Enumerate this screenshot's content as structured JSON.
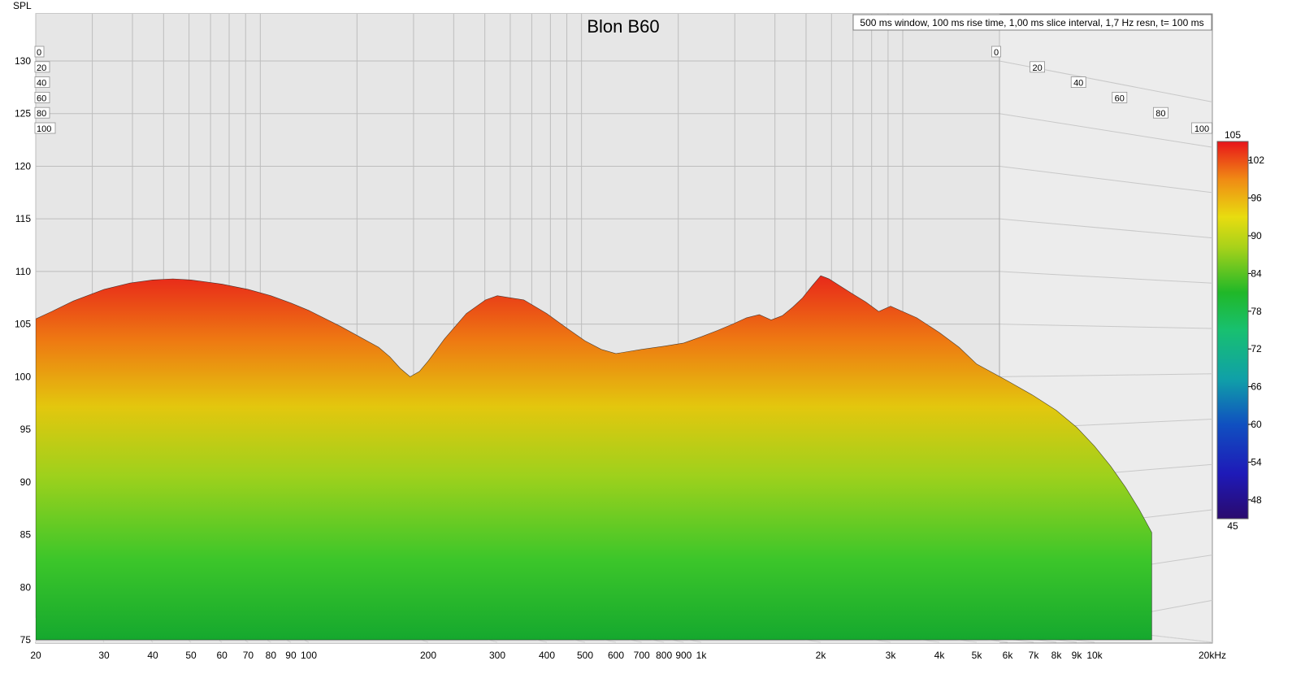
{
  "chart_data": {
    "type": "area",
    "title": "Blon B60",
    "info": "500 ms window, 100 ms rise time, 1,00 ms slice interval, 1,7 Hz resn, t= 100 ms",
    "ylabel": "SPL",
    "xscale": "log",
    "xlim": [
      20,
      20000
    ],
    "ylim": [
      75,
      135
    ],
    "x_ticks": [
      {
        "v": 20,
        "label": "20"
      },
      {
        "v": 30,
        "label": "30"
      },
      {
        "v": 40,
        "label": "40"
      },
      {
        "v": 50,
        "label": "50"
      },
      {
        "v": 60,
        "label": "60"
      },
      {
        "v": 70,
        "label": "70"
      },
      {
        "v": 80,
        "label": "80"
      },
      {
        "v": 90,
        "label": "90"
      },
      {
        "v": 100,
        "label": "100"
      },
      {
        "v": 200,
        "label": "200"
      },
      {
        "v": 300,
        "label": "300"
      },
      {
        "v": 400,
        "label": "400"
      },
      {
        "v": 500,
        "label": "500"
      },
      {
        "v": 600,
        "label": "600"
      },
      {
        "v": 700,
        "label": "700"
      },
      {
        "v": 800,
        "label": "800"
      },
      {
        "v": 900,
        "label": "900"
      },
      {
        "v": 1000,
        "label": "1k"
      },
      {
        "v": 2000,
        "label": "2k"
      },
      {
        "v": 3000,
        "label": "3k"
      },
      {
        "v": 4000,
        "label": "4k"
      },
      {
        "v": 5000,
        "label": "5k"
      },
      {
        "v": 6000,
        "label": "6k"
      },
      {
        "v": 7000,
        "label": "7k"
      },
      {
        "v": 8000,
        "label": "8k"
      },
      {
        "v": 9000,
        "label": "9k"
      },
      {
        "v": 10000,
        "label": "10k"
      },
      {
        "v": 20000,
        "label": "20kHz"
      }
    ],
    "y_ticks": [
      75,
      80,
      85,
      90,
      95,
      100,
      105,
      110,
      115,
      120,
      125,
      130
    ],
    "time_axis_ms": [
      0,
      20,
      40,
      60,
      80,
      100
    ],
    "time_axis_labels": [
      "0",
      "20",
      "40",
      "60",
      "80",
      "100"
    ],
    "colorbar": {
      "min": 45,
      "max": 105,
      "ticks": [
        48,
        54,
        60,
        66,
        72,
        78,
        84,
        90,
        96,
        102
      ],
      "min_label": "45",
      "max_label": "105"
    },
    "series": [
      {
        "x": [
          20,
          22,
          25,
          30,
          35,
          40,
          45,
          50,
          60,
          70,
          80,
          90,
          100,
          120,
          150,
          160,
          170,
          180,
          190,
          200,
          220,
          250,
          280,
          300,
          350,
          400,
          450,
          500,
          550,
          600,
          700,
          800,
          900,
          1000,
          1100,
          1200,
          1300,
          1400,
          1500,
          1600,
          1700,
          1800,
          1900,
          2000,
          2100,
          2200,
          2400,
          2600,
          2800,
          3000,
          3500,
          4000,
          4500,
          5000,
          6000,
          7000,
          8000,
          9000,
          10000,
          11000,
          12000,
          13000,
          14000
        ],
        "y": [
          105.5,
          106.2,
          107.2,
          108.3,
          108.9,
          109.2,
          109.3,
          109.2,
          108.8,
          108.3,
          107.7,
          107.0,
          106.3,
          104.8,
          102.8,
          101.9,
          100.8,
          100.0,
          100.5,
          101.5,
          103.6,
          106.0,
          107.3,
          107.7,
          107.3,
          106.0,
          104.6,
          103.4,
          102.6,
          102.2,
          102.6,
          102.9,
          103.2,
          103.8,
          104.4,
          105.0,
          105.6,
          105.9,
          105.4,
          105.8,
          106.6,
          107.5,
          108.6,
          109.6,
          109.3,
          108.8,
          107.9,
          107.1,
          106.2,
          106.7,
          105.6,
          104.2,
          102.8,
          101.2,
          99.6,
          98.2,
          96.8,
          95.2,
          93.4,
          91.5,
          89.5,
          87.4,
          85.2
        ]
      }
    ]
  }
}
